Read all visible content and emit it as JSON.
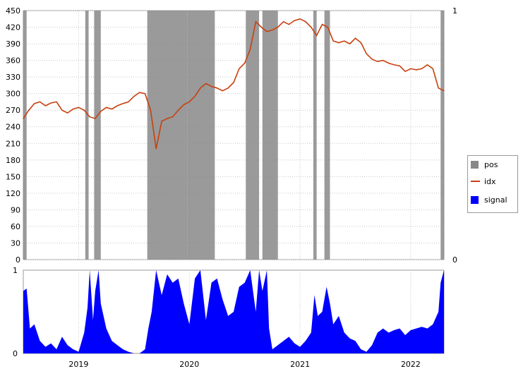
{
  "chart_data": [
    {
      "type": "line",
      "panel": "top",
      "ylim": [
        0,
        450
      ],
      "y_ticks": [
        0,
        30,
        60,
        90,
        120,
        150,
        180,
        210,
        240,
        270,
        300,
        330,
        360,
        390,
        420,
        450
      ],
      "right_axis": {
        "ylim": [
          0,
          1
        ],
        "ticks": [
          "0",
          "1"
        ]
      },
      "xlim": [
        2018.5,
        2022.3
      ],
      "grid": true,
      "series": [
        {
          "name": "idx",
          "color": "#c8400f",
          "x": [
            2018.5,
            2018.55,
            2018.6,
            2018.65,
            2018.7,
            2018.75,
            2018.8,
            2018.85,
            2018.9,
            2018.95,
            2019.0,
            2019.05,
            2019.1,
            2019.15,
            2019.2,
            2019.25,
            2019.3,
            2019.35,
            2019.4,
            2019.45,
            2019.5,
            2019.55,
            2019.6,
            2019.65,
            2019.7,
            2019.75,
            2019.8,
            2019.85,
            2019.9,
            2019.95,
            2020.0,
            2020.05,
            2020.1,
            2020.15,
            2020.2,
            2020.25,
            2020.3,
            2020.35,
            2020.4,
            2020.45,
            2020.5,
            2020.55,
            2020.6,
            2020.65,
            2020.7,
            2020.75,
            2020.8,
            2020.85,
            2020.9,
            2020.95,
            2021.0,
            2021.05,
            2021.1,
            2021.15,
            2021.2,
            2021.25,
            2021.3,
            2021.35,
            2021.4,
            2021.45,
            2021.5,
            2021.55,
            2021.6,
            2021.65,
            2021.7,
            2021.75,
            2021.8,
            2021.85,
            2021.9,
            2021.95,
            2022.0,
            2022.05,
            2022.1,
            2022.15,
            2022.2,
            2022.25,
            2022.3
          ],
          "values": [
            255,
            270,
            282,
            285,
            278,
            283,
            285,
            270,
            265,
            272,
            275,
            270,
            258,
            255,
            268,
            275,
            272,
            278,
            282,
            285,
            295,
            302,
            300,
            270,
            200,
            250,
            255,
            258,
            270,
            280,
            285,
            295,
            310,
            318,
            313,
            310,
            305,
            310,
            320,
            345,
            355,
            380,
            430,
            420,
            412,
            415,
            420,
            430,
            425,
            432,
            435,
            430,
            420,
            405,
            425,
            420,
            395,
            392,
            395,
            390,
            400,
            392,
            372,
            362,
            358,
            360,
            355,
            352,
            350,
            340,
            345,
            343,
            345,
            352,
            345,
            310,
            305
          ]
        },
        {
          "name": "pos",
          "type": "bands",
          "color": "#888888",
          "x_ranges": [
            [
              2018.5,
              2018.53
            ],
            [
              2019.06,
              2019.09
            ],
            [
              2019.14,
              2019.2
            ],
            [
              2019.62,
              2019.98
            ],
            [
              2019.98,
              2020.23
            ],
            [
              2020.51,
              2020.63
            ],
            [
              2020.66,
              2020.8
            ],
            [
              2021.12,
              2021.15
            ],
            [
              2021.22,
              2021.27
            ],
            [
              2022.27,
              2022.3
            ]
          ]
        }
      ]
    },
    {
      "type": "area",
      "panel": "bottom",
      "ylim": [
        0,
        1
      ],
      "y_ticks": [
        0,
        1
      ],
      "xlim": [
        2018.5,
        2022.3
      ],
      "categories": [
        "2019",
        "2020",
        "2021",
        "2022"
      ],
      "series": [
        {
          "name": "signal",
          "color": "#0000ff",
          "x": [
            2018.5,
            2018.53,
            2018.56,
            2018.6,
            2018.65,
            2018.7,
            2018.75,
            2018.8,
            2018.85,
            2018.9,
            2018.95,
            2019.0,
            2019.05,
            2019.08,
            2019.1,
            2019.13,
            2019.15,
            2019.18,
            2019.2,
            2019.25,
            2019.3,
            2019.35,
            2019.4,
            2019.45,
            2019.5,
            2019.55,
            2019.6,
            2019.63,
            2019.66,
            2019.7,
            2019.75,
            2019.8,
            2019.85,
            2019.9,
            2019.95,
            2020.0,
            2020.05,
            2020.1,
            2020.15,
            2020.2,
            2020.25,
            2020.3,
            2020.35,
            2020.4,
            2020.45,
            2020.5,
            2020.55,
            2020.6,
            2020.63,
            2020.66,
            2020.7,
            2020.72,
            2020.75,
            2020.8,
            2020.85,
            2020.9,
            2020.95,
            2021.0,
            2021.05,
            2021.1,
            2021.13,
            2021.16,
            2021.2,
            2021.24,
            2021.27,
            2021.3,
            2021.35,
            2021.4,
            2021.45,
            2021.5,
            2021.55,
            2021.6,
            2021.65,
            2021.7,
            2021.75,
            2021.8,
            2021.85,
            2021.9,
            2021.95,
            2022.0,
            2022.05,
            2022.1,
            2022.15,
            2022.2,
            2022.25,
            2022.27,
            2022.3
          ],
          "values": [
            0.75,
            0.78,
            0.3,
            0.35,
            0.15,
            0.08,
            0.12,
            0.05,
            0.2,
            0.1,
            0.05,
            0.02,
            0.25,
            0.55,
            1.0,
            0.4,
            0.75,
            1.0,
            0.6,
            0.3,
            0.15,
            0.1,
            0.05,
            0.02,
            0.0,
            0.0,
            0.05,
            0.3,
            0.5,
            1.0,
            0.7,
            0.95,
            0.85,
            0.9,
            0.6,
            0.35,
            0.9,
            1.0,
            0.4,
            0.85,
            0.9,
            0.65,
            0.45,
            0.5,
            0.8,
            0.85,
            1.0,
            0.5,
            1.0,
            0.75,
            1.0,
            0.3,
            0.05,
            0.1,
            0.15,
            0.2,
            0.12,
            0.08,
            0.15,
            0.25,
            0.7,
            0.45,
            0.5,
            0.8,
            0.6,
            0.35,
            0.45,
            0.25,
            0.18,
            0.15,
            0.05,
            0.02,
            0.1,
            0.25,
            0.3,
            0.25,
            0.28,
            0.3,
            0.22,
            0.28,
            0.3,
            0.32,
            0.3,
            0.35,
            0.5,
            0.85,
            1.0
          ]
        }
      ]
    }
  ],
  "legend": {
    "items": [
      {
        "label": "pos",
        "color": "#888888",
        "kind": "swatch"
      },
      {
        "label": "idx",
        "color": "#c8400f",
        "kind": "line"
      },
      {
        "label": "signal",
        "color": "#0000ff",
        "kind": "swatch"
      }
    ]
  }
}
